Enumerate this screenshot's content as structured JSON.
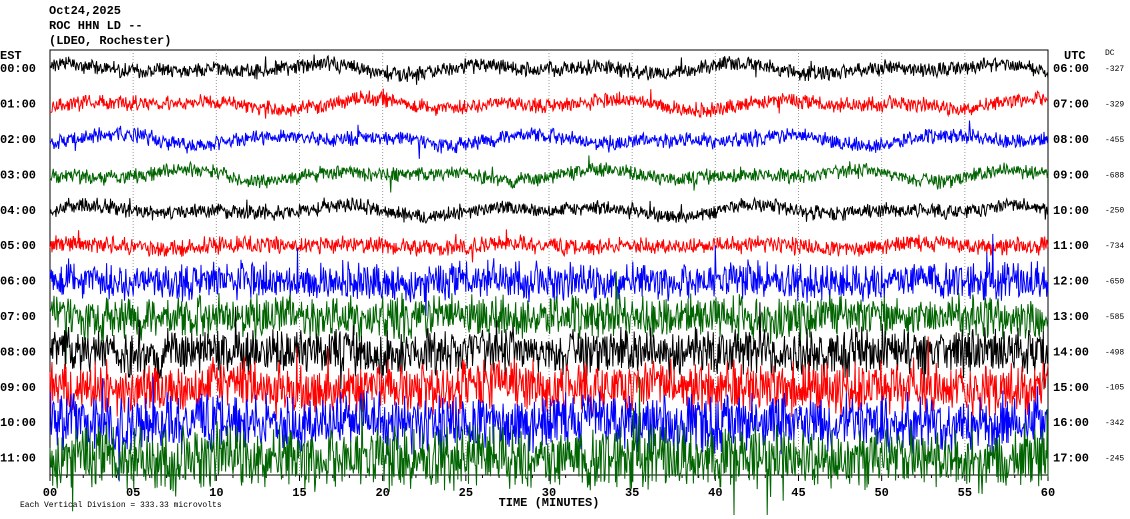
{
  "header": {
    "date": "Oct24,2025",
    "station": "ROC HHN LD --",
    "network": "(LDEO, Rochester)"
  },
  "left_axis": {
    "title": "EST",
    "labels": [
      "00:00",
      "01:00",
      "02:00",
      "03:00",
      "04:00",
      "05:00",
      "06:00",
      "07:00",
      "08:00",
      "09:00",
      "10:00",
      "11:00"
    ]
  },
  "right_axis": {
    "title": "UTC",
    "labels": [
      "06:00",
      "07:00",
      "08:00",
      "09:00",
      "10:00",
      "11:00",
      "12:00",
      "13:00",
      "14:00",
      "15:00",
      "16:00",
      "17:00"
    ]
  },
  "dc": {
    "title": "DC",
    "values": [
      "-327",
      "-329",
      "-455",
      "-688",
      "-250",
      "-734",
      "-650",
      "-585",
      "-498",
      "-105",
      "-342",
      "-245"
    ]
  },
  "x_axis": {
    "ticks": [
      "00",
      "05",
      "10",
      "15",
      "20",
      "25",
      "30",
      "35",
      "40",
      "45",
      "50",
      "55",
      "60"
    ],
    "label": "TIME (MINUTES)"
  },
  "footer": "Each Vertical Division = 333.33 microvolts"
}
